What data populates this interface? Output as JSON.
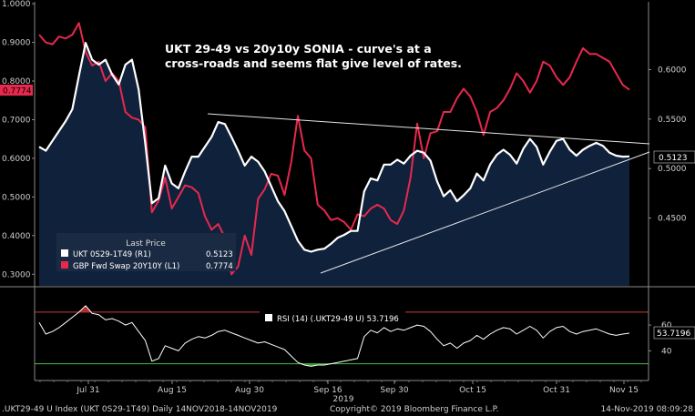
{
  "chart_data": [
    {
      "type": "area",
      "title": "UKT 29-49 vs 20y10y SONIA - curve's at a cross-roads and seems flat give level of rates.",
      "title_lines": [
        "UKT 29-49 vs 20y10y SONIA - curve's at a",
        "cross-roads and seems flat give level of rates."
      ],
      "xlabel": "2019",
      "x_ticks": [
        "Jul 31",
        "Aug 15",
        "Aug 30",
        "Sep 16",
        "Sep 30",
        "Oct 15",
        "Oct 31",
        "Nov 15"
      ],
      "y_left": {
        "ticks": [
          "1.0000",
          "0.9000",
          "0.8000",
          "0.7000",
          "0.6000",
          "0.5000",
          "0.4000",
          "0.3000"
        ],
        "ylim": [
          0.27,
          1.005
        ]
      },
      "y_right": {
        "ticks": [
          "0.6000",
          "0.5500",
          "0.5000",
          "0.4500"
        ],
        "ylim": [
          0.3815,
          0.6685
        ]
      },
      "legend": {
        "heading": "Last Price",
        "entries": [
          {
            "name": "UKT 0S29-1T49  (R1)",
            "value": "0.5123",
            "color": "#ffffff"
          },
          {
            "name": "GBP Fwd Swap 20Y10Y  (L1)",
            "value": "0.7774",
            "color": "#e8284d"
          }
        ],
        "placement": "bottom-left"
      },
      "last_labels": {
        "left": "0.7774",
        "right": "0.5123"
      },
      "series": [
        {
          "name": "UKT 0S29-1T49  (R1)",
          "axis": "right",
          "color": "#ffffff",
          "fill": "#10213c",
          "values": [
            0.522,
            0.518,
            0.528,
            0.538,
            0.548,
            0.56,
            0.594,
            0.627,
            0.61,
            0.605,
            0.61,
            0.595,
            0.585,
            0.605,
            0.61,
            0.58,
            0.525,
            0.465,
            0.47,
            0.503,
            0.485,
            0.48,
            0.497,
            0.512,
            0.512,
            0.522,
            0.532,
            0.547,
            0.545,
            0.532,
            0.518,
            0.503,
            0.512,
            0.507,
            0.497,
            0.482,
            0.467,
            0.457,
            0.442,
            0.427,
            0.418,
            0.416,
            0.418,
            0.419,
            0.424,
            0.43,
            0.433,
            0.437,
            0.437,
            0.477,
            0.49,
            0.488,
            0.504,
            0.504,
            0.509,
            0.505,
            0.513,
            0.518,
            0.516,
            0.508,
            0.487,
            0.472,
            0.478,
            0.467,
            0.473,
            0.48,
            0.495,
            0.488,
            0.504,
            0.514,
            0.519,
            0.514,
            0.505,
            0.52,
            0.53,
            0.522,
            0.504,
            0.517,
            0.528,
            0.53,
            0.519,
            0.513,
            0.519,
            0.523,
            0.526,
            0.523,
            0.516,
            0.513,
            0.512,
            0.5123
          ]
        },
        {
          "name": "GBP Fwd Swap 20Y10Y  (L1)",
          "axis": "left",
          "color": "#e8284d",
          "values": [
            0.92,
            0.9,
            0.895,
            0.915,
            0.91,
            0.92,
            0.95,
            0.875,
            0.84,
            0.85,
            0.8,
            0.82,
            0.8,
            0.72,
            0.705,
            0.7,
            0.68,
            0.46,
            0.49,
            0.55,
            0.47,
            0.5,
            0.53,
            0.525,
            0.51,
            0.45,
            0.415,
            0.43,
            0.395,
            0.3,
            0.32,
            0.4,
            0.35,
            0.495,
            0.52,
            0.56,
            0.555,
            0.505,
            0.59,
            0.71,
            0.62,
            0.6,
            0.48,
            0.465,
            0.44,
            0.445,
            0.435,
            0.415,
            0.455,
            0.45,
            0.47,
            0.48,
            0.47,
            0.44,
            0.43,
            0.465,
            0.55,
            0.69,
            0.6,
            0.665,
            0.67,
            0.72,
            0.72,
            0.755,
            0.78,
            0.76,
            0.72,
            0.66,
            0.72,
            0.73,
            0.75,
            0.78,
            0.82,
            0.8,
            0.77,
            0.8,
            0.85,
            0.84,
            0.81,
            0.79,
            0.81,
            0.85,
            0.885,
            0.87,
            0.87,
            0.86,
            0.85,
            0.82,
            0.79,
            0.7774
          ]
        }
      ]
    },
    {
      "type": "line",
      "legend": {
        "entries": [
          {
            "name": "RSI (14) (.UKT29-49 U) 53.7196",
            "color": "#ffffff"
          }
        ]
      },
      "y_ticks": [
        "60",
        "40"
      ],
      "ylim": [
        17,
        89
      ],
      "thresholds": [
        {
          "value": 70,
          "color": "#c83c3c"
        },
        {
          "value": 30,
          "color": "#3ec43e"
        }
      ],
      "last_label": "53.7196",
      "series": [
        {
          "name": "RSI (14) (.UKT29-49 U)",
          "color": "#ffffff",
          "values": [
            62,
            53,
            55,
            58,
            62,
            66,
            70,
            75,
            69,
            68,
            64,
            65,
            63,
            60,
            62,
            55,
            48,
            32,
            34,
            44,
            42,
            40,
            46,
            49,
            51,
            50,
            52,
            55,
            56,
            54,
            52,
            50,
            48,
            46,
            47,
            45,
            43,
            41,
            36,
            31,
            29,
            28,
            29,
            29,
            30,
            31,
            32,
            33,
            34,
            51,
            56,
            54,
            58,
            55,
            57,
            56,
            58,
            60,
            59,
            55,
            49,
            44,
            46,
            42,
            46,
            48,
            52,
            49,
            53,
            56,
            58,
            57,
            53,
            56,
            59,
            56,
            50,
            55,
            58,
            59,
            55,
            53,
            55,
            56,
            57,
            55,
            53,
            52,
            53,
            53.7196
          ]
        }
      ]
    }
  ],
  "footer": {
    "left": ".UKT29-49 U Index (UKT 0S29-1T49)  Daily 14NOV2018-14NOV2019",
    "center": "Copyright© 2019 Bloomberg Finance L.P.",
    "right": "14-Nov-2019 08:09:28"
  },
  "colors": {
    "background": "#000000",
    "area_fill": "#10213c",
    "red": "#e8284d",
    "white": "#ffffff"
  }
}
